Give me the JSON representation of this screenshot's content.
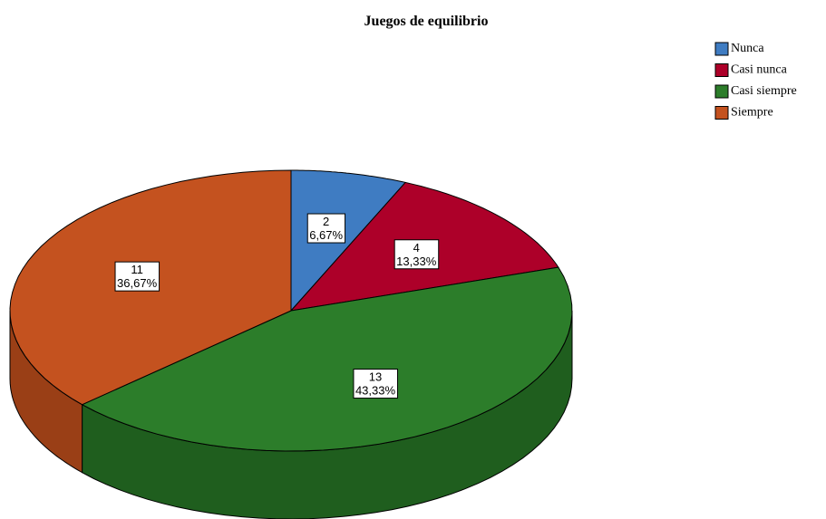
{
  "chart_data": {
    "type": "pie",
    "title": "Juegos de equilibrio",
    "categories": [
      "Nunca",
      "Casi nunca",
      "Casi siempre",
      "Siempre"
    ],
    "values": [
      2,
      4,
      13,
      11
    ],
    "percentages": [
      6.67,
      13.33,
      43.33,
      36.67
    ],
    "percentage_labels": [
      "6,67%",
      "13,33%",
      "43,33%",
      "36,67%"
    ],
    "colors": [
      "#3f7cc2",
      "#ad0029",
      "#2c7d2a",
      "#c4521f"
    ],
    "side_colors": [
      "#2f5f96",
      "#7e001e",
      "#1f5e1e",
      "#9a3f16"
    ],
    "legend": "top-right"
  }
}
